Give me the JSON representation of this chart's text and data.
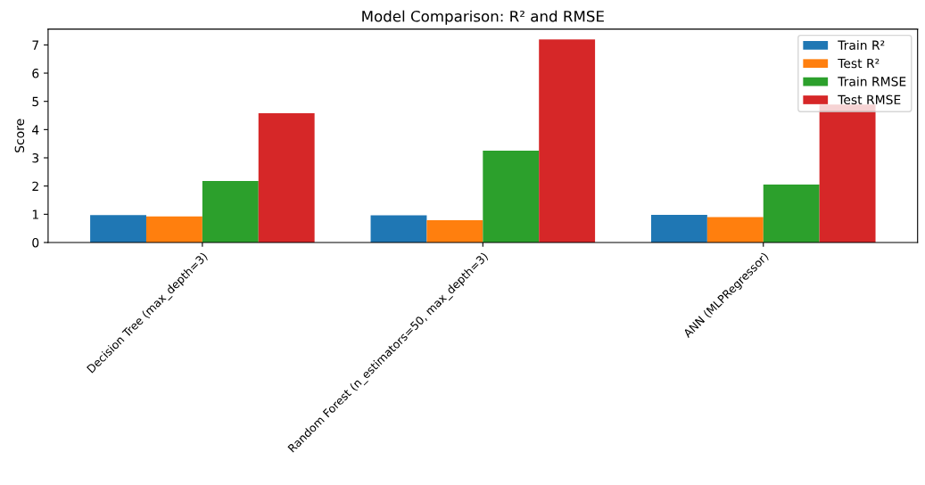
{
  "chart_data": {
    "type": "bar",
    "title": "Model Comparison: R² and RMSE",
    "ylabel": "Score",
    "categories": [
      "Decision Tree (max_depth=3)",
      "Random Forest (n_estimators=50, max_depth=3)",
      "ANN (MLPRegressor)"
    ],
    "series": [
      {
        "name": "Train R²",
        "color": "#1f77b4",
        "values": [
          0.97,
          0.96,
          0.98
        ]
      },
      {
        "name": "Test R²",
        "color": "#ff7f0e",
        "values": [
          0.92,
          0.79,
          0.9
        ]
      },
      {
        "name": "Train RMSE",
        "color": "#2ca02c",
        "values": [
          2.18,
          3.25,
          2.05
        ]
      },
      {
        "name": "Test RMSE",
        "color": "#d62728",
        "values": [
          4.58,
          7.19,
          4.89
        ]
      }
    ],
    "ylim": [
      0,
      7.56
    ],
    "yticks": [
      0,
      1,
      2,
      3,
      4,
      5,
      6,
      7
    ],
    "grid": false,
    "legend": "top right"
  }
}
